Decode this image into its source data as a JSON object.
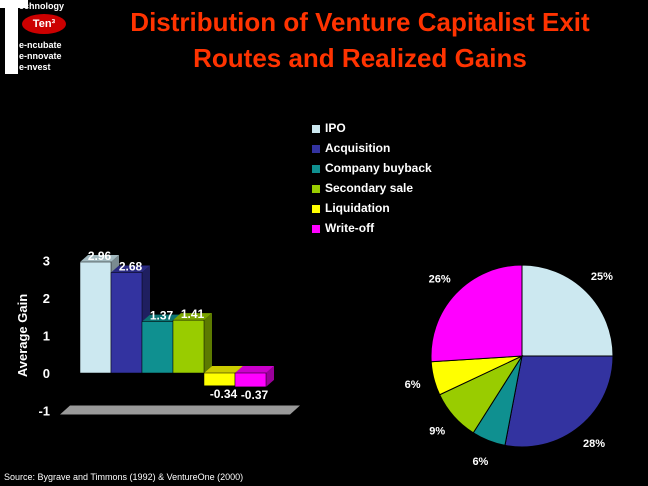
{
  "logo": {
    "line1": "echnology",
    "ten": "Ten³",
    "line2": "e-ncubate",
    "line3": "e-nnovate",
    "line4": "e-nvest"
  },
  "title": {
    "line1": "Distribution of Venture Capitalist Exit",
    "line2": "Routes and Realized Gains"
  },
  "legend": [
    {
      "label": "IPO",
      "color": "#cce8f0"
    },
    {
      "label": "Acquisition",
      "color": "#3333a0"
    },
    {
      "label": "Company buyback",
      "color": "#0f9090"
    },
    {
      "label": "Secondary sale",
      "color": "#99cc00"
    },
    {
      "label": "Liquidation",
      "color": "#ffff00"
    },
    {
      "label": "Write-off",
      "color": "#ff00ff"
    }
  ],
  "source": "Source: Bygrave and Timmons (1992) & VentureOne (2000)",
  "chart_data": [
    {
      "type": "bar",
      "ylabel": "Average Gain",
      "ylim": [
        -1,
        3
      ],
      "yticks": [
        "3",
        "2",
        "1",
        "0",
        "-1"
      ],
      "series": [
        {
          "name": "IPO",
          "value": 2.96,
          "label": "2.96"
        },
        {
          "name": "Acquisition",
          "value": 2.68,
          "label": "2.68"
        },
        {
          "name": "Company buyback",
          "value": 1.37,
          "label": "1.37"
        },
        {
          "name": "Secondary sale",
          "value": 1.41,
          "label": "1.41"
        },
        {
          "name": "Liquidation",
          "value": -0.34,
          "label": "-0.34"
        },
        {
          "name": "Write-off",
          "value": -0.37,
          "label": "-0.37"
        }
      ]
    },
    {
      "type": "pie",
      "slices": [
        {
          "name": "IPO",
          "value": 25,
          "label": "25%"
        },
        {
          "name": "Acquisition",
          "value": 28,
          "label": "28%"
        },
        {
          "name": "Company buyback",
          "value": 6,
          "label": "6%"
        },
        {
          "name": "Secondary sale",
          "value": 9,
          "label": "9%"
        },
        {
          "name": "Liquidation",
          "value": 6,
          "label": "6%"
        },
        {
          "name": "Write-off",
          "value": 26,
          "label": "26%"
        }
      ]
    }
  ]
}
